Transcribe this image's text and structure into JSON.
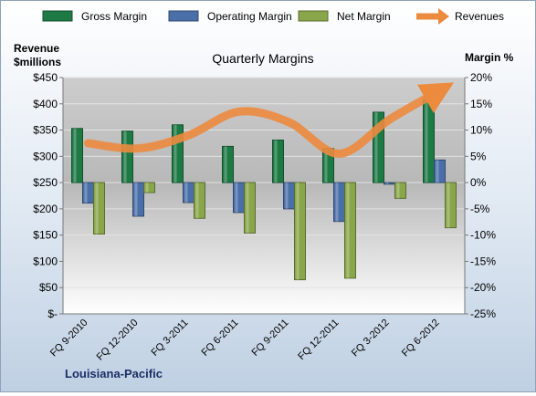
{
  "chart_data": {
    "type": "bar",
    "title": "Quarterly Margins",
    "company": "Louisiana-Pacific",
    "left_axis": {
      "label_line1": "Revenue",
      "label_line2": "$millions",
      "range": [
        0,
        450
      ],
      "ticks": [
        0,
        50,
        100,
        150,
        200,
        250,
        300,
        350,
        400,
        450
      ],
      "tick_labels": [
        "$-",
        "$50",
        "$100",
        "$150",
        "$200",
        "$250",
        "$300",
        "$350",
        "$400",
        "$450"
      ]
    },
    "right_axis": {
      "label": "Margin %",
      "range": [
        -25,
        20
      ],
      "ticks": [
        -25,
        -20,
        -15,
        -10,
        -5,
        0,
        5,
        10,
        15,
        20
      ],
      "tick_labels": [
        "-25%",
        "-20%",
        "-15%",
        "-10%",
        "-5%",
        "0%",
        "5%",
        "10%",
        "15%",
        "20%"
      ]
    },
    "categories": [
      "FQ 9-2010",
      "FQ 12-2010",
      "FQ 3-2011",
      "FQ 6-2011",
      "FQ 9-2011",
      "FQ 12-2011",
      "FQ 3-2012",
      "FQ 6-2012"
    ],
    "series": [
      {
        "name": "Gross Margin",
        "axis": "right",
        "kind": "bar",
        "color": "#1e7a45",
        "values": [
          10.3,
          9.8,
          11.0,
          6.9,
          8.1,
          6.5,
          13.4,
          15.8
        ]
      },
      {
        "name": "Operating Margin",
        "axis": "right",
        "kind": "bar",
        "color": "#4a6fa8",
        "values": [
          -3.9,
          -6.4,
          -3.8,
          -5.7,
          -5.0,
          -7.4,
          -0.3,
          4.3
        ]
      },
      {
        "name": "Net Margin",
        "axis": "right",
        "kind": "bar",
        "color": "#8aa64a",
        "values": [
          -9.8,
          -1.9,
          -6.8,
          -9.6,
          -18.5,
          -18.2,
          -3.0,
          -8.6
        ]
      },
      {
        "name": "Revenues",
        "axis": "left",
        "kind": "line",
        "color": "#ec8a3e",
        "values": [
          325,
          315,
          340,
          385,
          365,
          305,
          370,
          425
        ]
      }
    ],
    "legend_position": "top",
    "grid": true
  }
}
